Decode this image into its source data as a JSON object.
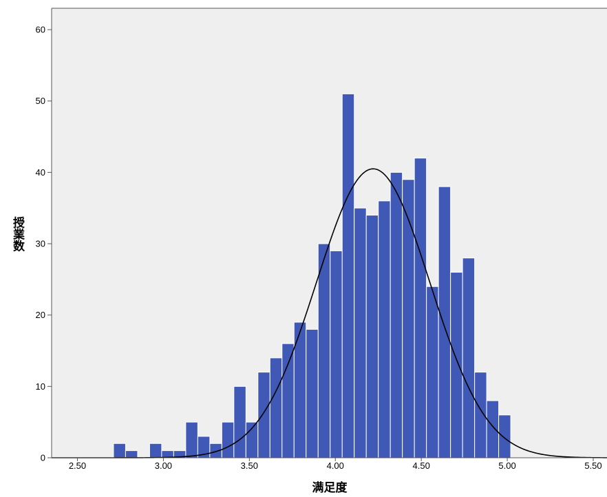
{
  "chart_data": {
    "type": "bar",
    "subtype": "histogram-with-normal-curve",
    "title": "",
    "xlabel": "满足度",
    "ylabel": "授業数",
    "xlim": [
      2.35,
      5.58
    ],
    "ylim": [
      0,
      63
    ],
    "xticks": [
      2.5,
      3.0,
      3.5,
      4.0,
      4.5,
      5.0,
      5.5
    ],
    "xtick_labels": [
      "2.50",
      "3.00",
      "3.50",
      "4.00",
      "4.50",
      "5.00",
      "5.50"
    ],
    "yticks": [
      0,
      10,
      20,
      30,
      40,
      50,
      60
    ],
    "ytick_labels": [
      "0",
      "10",
      "20",
      "30",
      "40",
      "50",
      "60"
    ],
    "bin_width": 0.07,
    "bins": [
      {
        "start": 2.71,
        "count": 2
      },
      {
        "start": 2.78,
        "count": 1
      },
      {
        "start": 2.92,
        "count": 2
      },
      {
        "start": 2.99,
        "count": 1
      },
      {
        "start": 3.06,
        "count": 1
      },
      {
        "start": 3.13,
        "count": 5
      },
      {
        "start": 3.2,
        "count": 3
      },
      {
        "start": 3.27,
        "count": 2
      },
      {
        "start": 3.34,
        "count": 5
      },
      {
        "start": 3.41,
        "count": 10
      },
      {
        "start": 3.48,
        "count": 5
      },
      {
        "start": 3.55,
        "count": 12
      },
      {
        "start": 3.62,
        "count": 14
      },
      {
        "start": 3.69,
        "count": 16
      },
      {
        "start": 3.76,
        "count": 19
      },
      {
        "start": 3.83,
        "count": 18
      },
      {
        "start": 3.9,
        "count": 30
      },
      {
        "start": 3.97,
        "count": 29
      },
      {
        "start": 4.04,
        "count": 51
      },
      {
        "start": 4.11,
        "count": 35
      },
      {
        "start": 4.18,
        "count": 34
      },
      {
        "start": 4.25,
        "count": 36
      },
      {
        "start": 4.32,
        "count": 40
      },
      {
        "start": 4.39,
        "count": 39
      },
      {
        "start": 4.46,
        "count": 42
      },
      {
        "start": 4.53,
        "count": 24
      },
      {
        "start": 4.6,
        "count": 38
      },
      {
        "start": 4.67,
        "count": 26
      },
      {
        "start": 4.74,
        "count": 28
      },
      {
        "start": 4.81,
        "count": 12
      },
      {
        "start": 4.88,
        "count": 8
      },
      {
        "start": 4.95,
        "count": 6
      }
    ],
    "normal_curve": {
      "mean": 4.22,
      "sd": 0.33,
      "peak": 40.5
    },
    "grid": false,
    "legend": "none",
    "colors": {
      "bar": "#4159b6",
      "bar_edge": "#ffffff",
      "plot_background": "#efefef",
      "curve": "#000000",
      "axis": "#555555"
    }
  }
}
